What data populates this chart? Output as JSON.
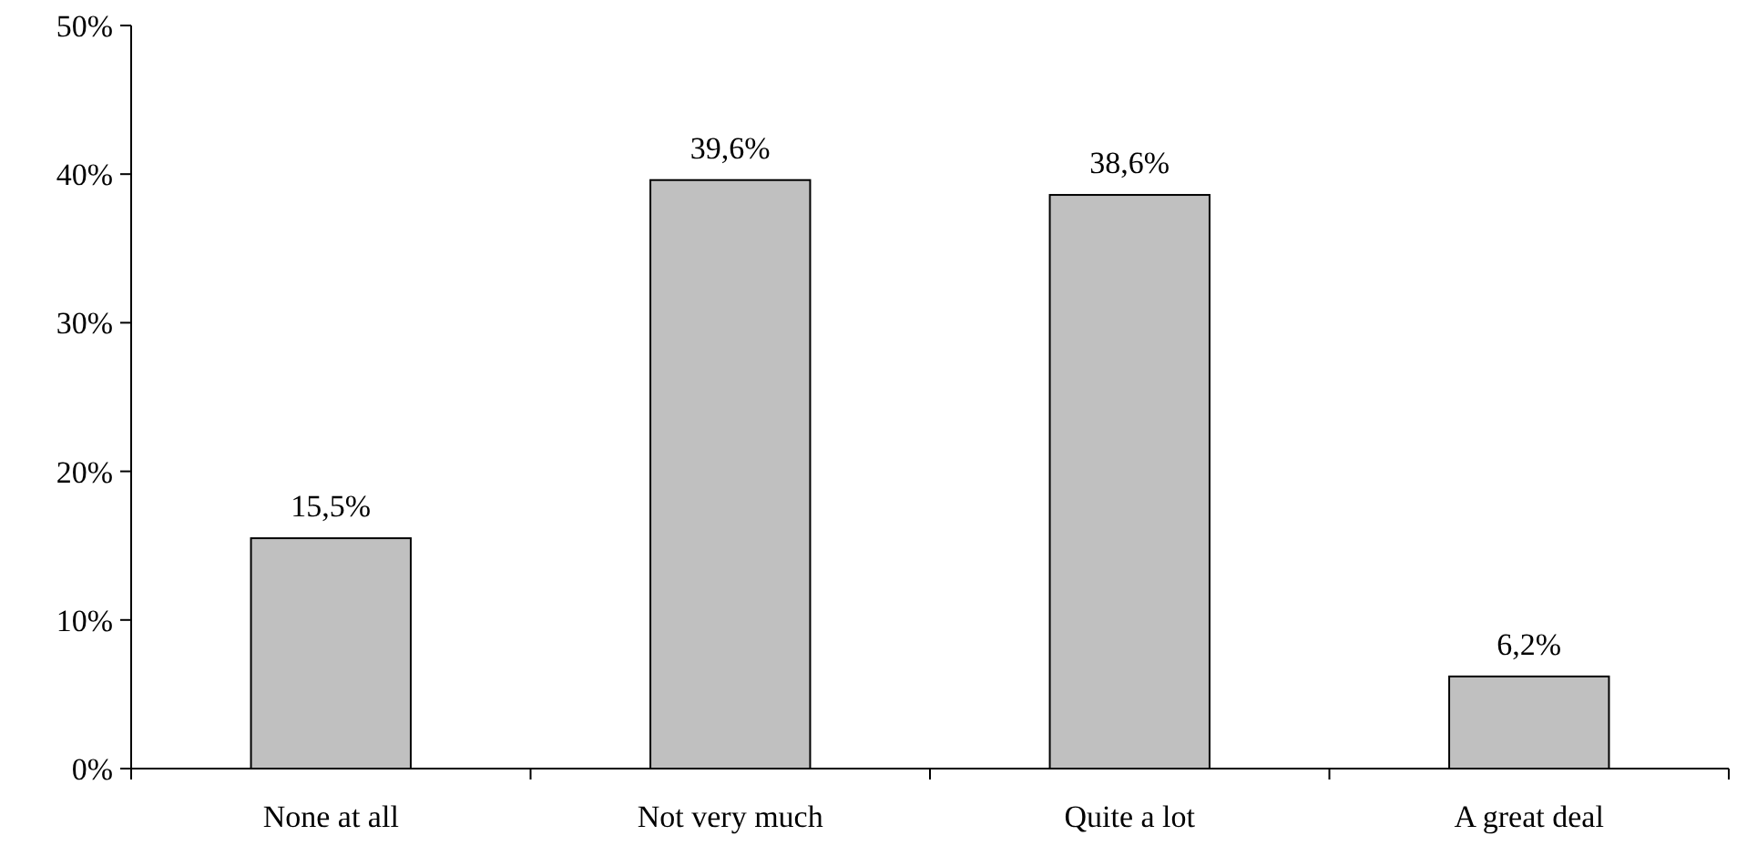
{
  "chart_data": {
    "type": "bar",
    "categories": [
      "None at all",
      "Not very much",
      "Quite a lot",
      "A great deal"
    ],
    "values": [
      15.5,
      39.6,
      38.6,
      6.2
    ],
    "value_labels": [
      "15,5%",
      "39,6%",
      "38,6%",
      "6,2%"
    ],
    "color": "#c0c0c0",
    "ylim": [
      0,
      50
    ],
    "yticks": [
      {
        "value": 0,
        "label": "0%"
      },
      {
        "value": 10,
        "label": "10%"
      },
      {
        "value": 20,
        "label": "20%"
      },
      {
        "value": 30,
        "label": "30%"
      },
      {
        "value": 40,
        "label": "40%"
      },
      {
        "value": 50,
        "label": "50%"
      }
    ],
    "grid": false
  }
}
